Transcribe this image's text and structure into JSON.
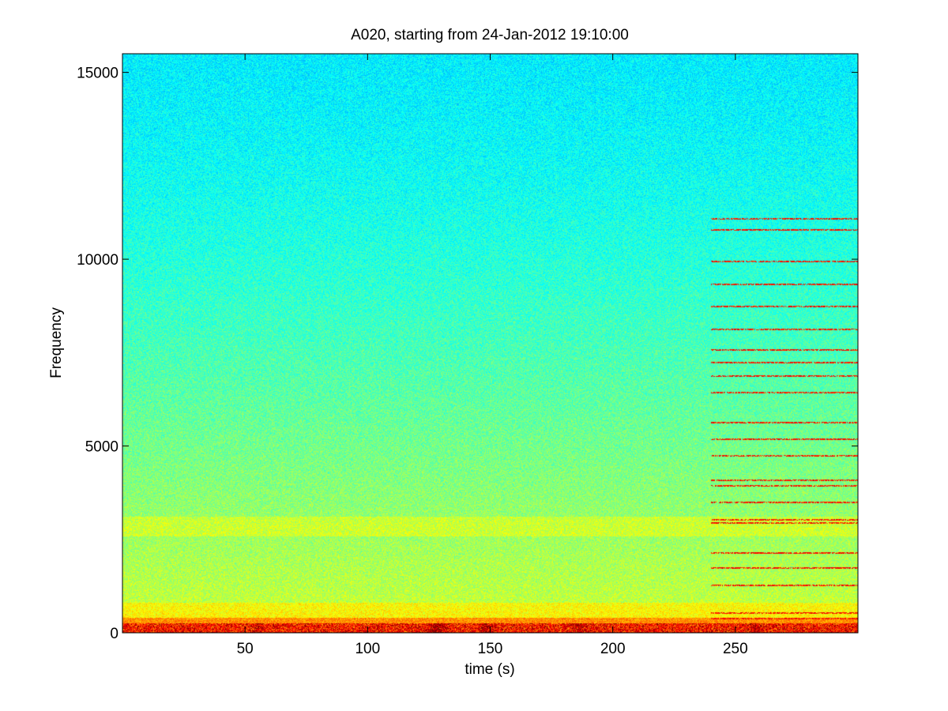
{
  "chart_data": {
    "type": "heatmap",
    "title": "A020, starting from 24-Jan-2012 19:10:00",
    "xlabel": "time (s)",
    "ylabel": "Frequency",
    "xlim": [
      0,
      300
    ],
    "ylim": [
      0,
      15500
    ],
    "xticks": [
      50,
      100,
      150,
      200,
      250
    ],
    "yticks": [
      0,
      5000,
      10000,
      15000
    ],
    "colormap": "jet",
    "colors": {
      "high_freq_background": "#22e6d0",
      "mid_freq_background": "#7cf070",
      "low_freq_band": "#ecf02a",
      "intense": "#d01818"
    },
    "features": {
      "broadband_band_hz": [
        2600,
        3100
      ],
      "low_freq_intense_band_hz": [
        0,
        400
      ],
      "tonal_lines_start_s": 240,
      "tonal_line_freqs_hz": [
        400,
        550,
        1300,
        1750,
        2150,
        2950,
        3050,
        3500,
        3950,
        4100,
        4750,
        5200,
        5650,
        6450,
        6900,
        7250,
        7600,
        8150,
        8750,
        9350,
        9950,
        10800,
        11100
      ],
      "transient_events_s": [
        {
          "t": 127,
          "intensity": 0.9
        },
        {
          "t": 148,
          "intensity": 0.8
        },
        {
          "t": 186,
          "intensity": 0.7
        },
        {
          "t": 130,
          "intensity": 0.6
        },
        {
          "t": 55,
          "intensity": 0.5
        },
        {
          "t": 258,
          "intensity": 0.6
        }
      ]
    }
  }
}
